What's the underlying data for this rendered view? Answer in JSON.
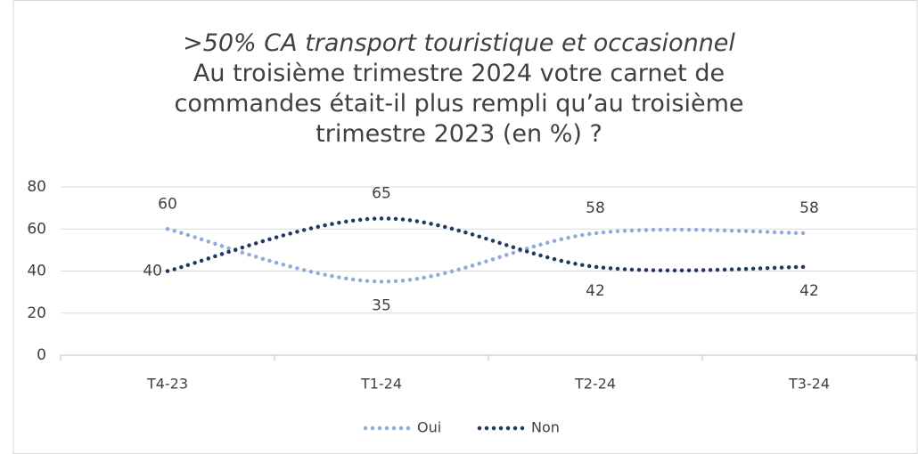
{
  "chart_data": {
    "type": "line",
    "title": ">50% CA transport touristique et occasionnel",
    "subtitle": "Au troisième trimestre 2024 votre carnet de commandes était-il plus rempli qu’au troisième trimestre 2023 (en %) ?",
    "categories": [
      "T4-23",
      "T1-24",
      "T2-24",
      "T3-24"
    ],
    "series": [
      {
        "name": "Oui",
        "color": "#8faadc",
        "values": [
          60,
          35,
          58,
          58
        ]
      },
      {
        "name": "Non",
        "color": "#1f3864",
        "values": [
          40,
          65,
          42,
          42
        ]
      }
    ],
    "ylim": [
      0,
      80
    ],
    "yticks": [
      0,
      20,
      40,
      60,
      80
    ],
    "grid": true,
    "legend": "bottom"
  }
}
